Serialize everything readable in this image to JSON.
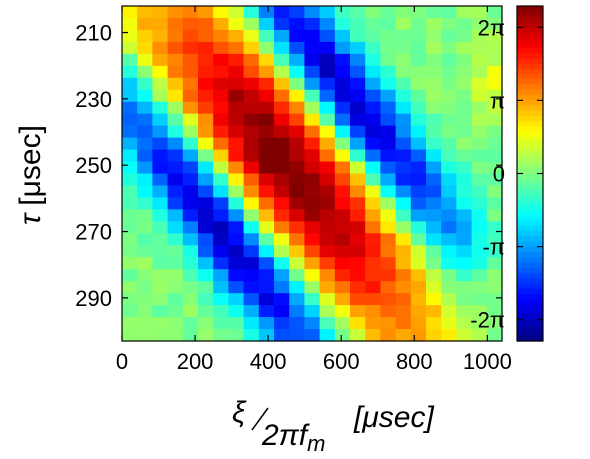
{
  "chart_data": {
    "type": "heatmap",
    "title": "",
    "xlabel": {
      "numerator": "ξ",
      "denominator": "2πf",
      "denominator_sub": "m",
      "unit": "[μsec]"
    },
    "ylabel": {
      "symbol": "τ",
      "unit": "[μsec]"
    },
    "x_ticks": [
      0,
      200,
      400,
      600,
      800,
      1000
    ],
    "y_ticks": [
      210,
      230,
      250,
      270,
      290
    ],
    "x_tick_labels": [
      "0",
      "200",
      "400",
      "600",
      "800",
      "1000"
    ],
    "y_tick_labels": [
      "210",
      "230",
      "250",
      "270",
      "290"
    ],
    "xlim": [
      0,
      1040
    ],
    "ylim": [
      202,
      303
    ],
    "colorbar": {
      "colormap": "jet",
      "range": [
        -7.2,
        7.2
      ],
      "ticks": [
        6.2832,
        3.1416,
        0,
        -3.1416,
        -6.2832
      ],
      "tick_labels": [
        "2π",
        "π",
        "0",
        "-π",
        "-2π"
      ]
    },
    "field_model": {
      "description_of_phase_field": "phase approx 7.5*exp(-(d/55)^2) - 6.5*exp(-(d+65)^2/28^2) - 6.5*exp(-(d-65)^2/28^2) with d = x_scaled - (tau-250)*2.0, along diagonal band",
      "grid_columns": 25,
      "grid_rows": 28
    }
  }
}
